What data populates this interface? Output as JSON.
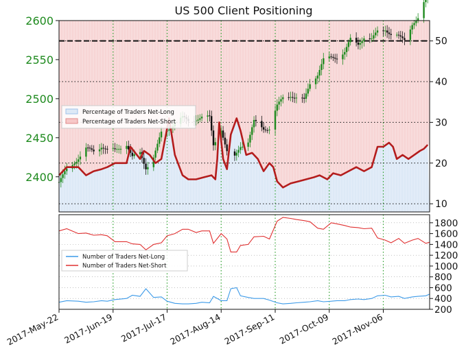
{
  "chart_data": {
    "type": "line",
    "title": "US 500 Client Positioning",
    "colors": {
      "price_axis": "#1e8a1e",
      "candle_up": "#1e8a1e",
      "candle_down": "#111111",
      "net_short_line": "#b41c1c",
      "net_short_fill": "#f7d5d5",
      "net_long_fill": "#dde9f6",
      "short_count_line": "#e03030",
      "long_count_line": "#3c9ae8",
      "grid": "#2ca02c"
    },
    "x_tick_labels": [
      "2017-May-22",
      "2017-Jun-19",
      "2017-Jul-17",
      "2017-Aug-14",
      "2017-Sep-11",
      "2017-Oct-09",
      "2017-Nov-06"
    ],
    "top_panel": {
      "price_axis": {
        "ticks": [
          2400,
          2450,
          2500,
          2550,
          2600
        ],
        "range": [
          2355,
          2600
        ]
      },
      "percent_axis": {
        "ticks": [
          10,
          20,
          30,
          40,
          50
        ],
        "range": [
          8,
          55
        ]
      },
      "reference_line": 50,
      "legend": [
        "Percentage of Traders Net-Long",
        "Percentage of Traders Net-Short"
      ],
      "net_short_pct": [
        {
          "x": "2017-05-22",
          "y": 17
        },
        {
          "x": "2017-05-26",
          "y": 19
        },
        {
          "x": "2017-06-01",
          "y": 19
        },
        {
          "x": "2017-06-05",
          "y": 17
        },
        {
          "x": "2017-06-09",
          "y": 18
        },
        {
          "x": "2017-06-13",
          "y": 18.5
        },
        {
          "x": "2017-06-16",
          "y": 19
        },
        {
          "x": "2017-06-20",
          "y": 20
        },
        {
          "x": "2017-06-26",
          "y": 20
        },
        {
          "x": "2017-06-28",
          "y": 24
        },
        {
          "x": "2017-07-03",
          "y": 21
        },
        {
          "x": "2017-07-05",
          "y": 23
        },
        {
          "x": "2017-07-08",
          "y": 22
        },
        {
          "x": "2017-07-11",
          "y": 20
        },
        {
          "x": "2017-07-14",
          "y": 21
        },
        {
          "x": "2017-07-18",
          "y": 31
        },
        {
          "x": "2017-07-21",
          "y": 22
        },
        {
          "x": "2017-07-25",
          "y": 17
        },
        {
          "x": "2017-07-28",
          "y": 16
        },
        {
          "x": "2017-08-01",
          "y": 16
        },
        {
          "x": "2017-08-05",
          "y": 16.5
        },
        {
          "x": "2017-08-09",
          "y": 17
        },
        {
          "x": "2017-08-11",
          "y": 16
        },
        {
          "x": "2017-08-12",
          "y": 21
        },
        {
          "x": "2017-08-13",
          "y": 30
        },
        {
          "x": "2017-08-15",
          "y": 21
        },
        {
          "x": "2017-08-17",
          "y": 18.5
        },
        {
          "x": "2017-08-19",
          "y": 27
        },
        {
          "x": "2017-08-22",
          "y": 31
        },
        {
          "x": "2017-08-24",
          "y": 28
        },
        {
          "x": "2017-08-27",
          "y": 22
        },
        {
          "x": "2017-08-30",
          "y": 22.5
        },
        {
          "x": "2017-09-02",
          "y": 21
        },
        {
          "x": "2017-09-05",
          "y": 18
        },
        {
          "x": "2017-09-08",
          "y": 20
        },
        {
          "x": "2017-09-10",
          "y": 19
        },
        {
          "x": "2017-09-12",
          "y": 15.5
        },
        {
          "x": "2017-09-15",
          "y": 14
        },
        {
          "x": "2017-09-19",
          "y": 15
        },
        {
          "x": "2017-09-23",
          "y": 15.5
        },
        {
          "x": "2017-09-27",
          "y": 16
        },
        {
          "x": "2017-10-01",
          "y": 16.5
        },
        {
          "x": "2017-10-04",
          "y": 17
        },
        {
          "x": "2017-10-08",
          "y": 16
        },
        {
          "x": "2017-10-11",
          "y": 17.5
        },
        {
          "x": "2017-10-15",
          "y": 17
        },
        {
          "x": "2017-10-19",
          "y": 18
        },
        {
          "x": "2017-10-23",
          "y": 19
        },
        {
          "x": "2017-10-27",
          "y": 18
        },
        {
          "x": "2017-10-31",
          "y": 19
        },
        {
          "x": "2017-11-03",
          "y": 24
        },
        {
          "x": "2017-11-06",
          "y": 24
        },
        {
          "x": "2017-11-09",
          "y": 25
        },
        {
          "x": "2017-11-11",
          "y": 24
        },
        {
          "x": "2017-11-13",
          "y": 21
        },
        {
          "x": "2017-11-16",
          "y": 22
        },
        {
          "x": "2017-11-19",
          "y": 21
        },
        {
          "x": "2017-11-22",
          "y": 22
        },
        {
          "x": "2017-11-25",
          "y": 23
        },
        {
          "x": "2017-11-27",
          "y": 23.5
        },
        {
          "x": "2017-11-29",
          "y": 24.5
        }
      ],
      "price_close": [
        {
          "x": "2017-05-22",
          "y": 2393
        },
        {
          "x": "2017-05-26",
          "y": 2408
        },
        {
          "x": "2017-06-01",
          "y": 2425
        },
        {
          "x": "2017-06-05",
          "y": 2435
        },
        {
          "x": "2017-06-09",
          "y": 2432
        },
        {
          "x": "2017-06-13",
          "y": 2440
        },
        {
          "x": "2017-06-16",
          "y": 2435
        },
        {
          "x": "2017-06-20",
          "y": 2433
        },
        {
          "x": "2017-06-26",
          "y": 2442
        },
        {
          "x": "2017-06-29",
          "y": 2425
        },
        {
          "x": "2017-07-03",
          "y": 2430
        },
        {
          "x": "2017-07-06",
          "y": 2412
        },
        {
          "x": "2017-07-10",
          "y": 2425
        },
        {
          "x": "2017-07-14",
          "y": 2455
        },
        {
          "x": "2017-07-17",
          "y": 2460
        },
        {
          "x": "2017-07-21",
          "y": 2470
        },
        {
          "x": "2017-07-25",
          "y": 2475
        },
        {
          "x": "2017-07-28",
          "y": 2470
        },
        {
          "x": "2017-08-01",
          "y": 2475
        },
        {
          "x": "2017-08-04",
          "y": 2477
        },
        {
          "x": "2017-08-08",
          "y": 2475
        },
        {
          "x": "2017-08-10",
          "y": 2440
        },
        {
          "x": "2017-08-14",
          "y": 2462
        },
        {
          "x": "2017-08-17",
          "y": 2432
        },
        {
          "x": "2017-08-21",
          "y": 2425
        },
        {
          "x": "2017-08-24",
          "y": 2440
        },
        {
          "x": "2017-08-28",
          "y": 2445
        },
        {
          "x": "2017-08-31",
          "y": 2470
        },
        {
          "x": "2017-09-05",
          "y": 2462
        },
        {
          "x": "2017-09-08",
          "y": 2463
        },
        {
          "x": "2017-09-12",
          "y": 2490
        },
        {
          "x": "2017-09-15",
          "y": 2500
        },
        {
          "x": "2017-09-19",
          "y": 2505
        },
        {
          "x": "2017-09-22",
          "y": 2502
        },
        {
          "x": "2017-09-26",
          "y": 2497
        },
        {
          "x": "2017-09-29",
          "y": 2519
        },
        {
          "x": "2017-10-03",
          "y": 2532
        },
        {
          "x": "2017-10-06",
          "y": 2550
        },
        {
          "x": "2017-10-10",
          "y": 2552
        },
        {
          "x": "2017-10-13",
          "y": 2553
        },
        {
          "x": "2017-10-17",
          "y": 2560
        },
        {
          "x": "2017-10-20",
          "y": 2575
        },
        {
          "x": "2017-10-24",
          "y": 2570
        },
        {
          "x": "2017-10-27",
          "y": 2580
        },
        {
          "x": "2017-10-31",
          "y": 2575
        },
        {
          "x": "2017-11-03",
          "y": 2585
        },
        {
          "x": "2017-11-07",
          "y": 2590
        },
        {
          "x": "2017-11-10",
          "y": 2583
        },
        {
          "x": "2017-11-14",
          "y": 2578
        },
        {
          "x": "2017-11-17",
          "y": 2575
        },
        {
          "x": "2017-11-21",
          "y": 2597
        },
        {
          "x": "2017-11-24",
          "y": 2602
        },
        {
          "x": "2017-11-28",
          "y": 2627
        },
        {
          "x": "2017-11-30",
          "y": 2645
        }
      ]
    },
    "bottom_panel": {
      "axis": {
        "ticks": [
          200,
          400,
          600,
          800,
          1000,
          1200,
          1400,
          1600,
          1800
        ],
        "range": [
          200,
          1950
        ]
      },
      "legend": [
        "Number of Traders Net-Long",
        "Number of Traders Net-Short"
      ],
      "net_short_count": [
        {
          "x": "2017-05-22",
          "y": 1650
        },
        {
          "x": "2017-05-26",
          "y": 1690
        },
        {
          "x": "2017-06-01",
          "y": 1600
        },
        {
          "x": "2017-06-05",
          "y": 1610
        },
        {
          "x": "2017-06-09",
          "y": 1570
        },
        {
          "x": "2017-06-13",
          "y": 1580
        },
        {
          "x": "2017-06-16",
          "y": 1560
        },
        {
          "x": "2017-06-20",
          "y": 1450
        },
        {
          "x": "2017-06-26",
          "y": 1450
        },
        {
          "x": "2017-06-29",
          "y": 1410
        },
        {
          "x": "2017-07-03",
          "y": 1400
        },
        {
          "x": "2017-07-06",
          "y": 1300
        },
        {
          "x": "2017-07-10",
          "y": 1400
        },
        {
          "x": "2017-07-14",
          "y": 1430
        },
        {
          "x": "2017-07-17",
          "y": 1560
        },
        {
          "x": "2017-07-21",
          "y": 1600
        },
        {
          "x": "2017-07-25",
          "y": 1680
        },
        {
          "x": "2017-07-28",
          "y": 1680
        },
        {
          "x": "2017-08-01",
          "y": 1620
        },
        {
          "x": "2017-08-04",
          "y": 1650
        },
        {
          "x": "2017-08-08",
          "y": 1650
        },
        {
          "x": "2017-08-10",
          "y": 1420
        },
        {
          "x": "2017-08-14",
          "y": 1600
        },
        {
          "x": "2017-08-17",
          "y": 1500
        },
        {
          "x": "2017-08-19",
          "y": 1260
        },
        {
          "x": "2017-08-22",
          "y": 1260
        },
        {
          "x": "2017-08-24",
          "y": 1380
        },
        {
          "x": "2017-08-28",
          "y": 1400
        },
        {
          "x": "2017-08-31",
          "y": 1540
        },
        {
          "x": "2017-09-05",
          "y": 1550
        },
        {
          "x": "2017-09-08",
          "y": 1500
        },
        {
          "x": "2017-09-12",
          "y": 1830
        },
        {
          "x": "2017-09-15",
          "y": 1900
        },
        {
          "x": "2017-09-19",
          "y": 1880
        },
        {
          "x": "2017-09-22",
          "y": 1860
        },
        {
          "x": "2017-09-26",
          "y": 1840
        },
        {
          "x": "2017-09-29",
          "y": 1820
        },
        {
          "x": "2017-10-03",
          "y": 1700
        },
        {
          "x": "2017-10-06",
          "y": 1680
        },
        {
          "x": "2017-10-10",
          "y": 1800
        },
        {
          "x": "2017-10-13",
          "y": 1780
        },
        {
          "x": "2017-10-17",
          "y": 1750
        },
        {
          "x": "2017-10-20",
          "y": 1720
        },
        {
          "x": "2017-10-24",
          "y": 1710
        },
        {
          "x": "2017-10-27",
          "y": 1690
        },
        {
          "x": "2017-10-31",
          "y": 1700
        },
        {
          "x": "2017-11-03",
          "y": 1520
        },
        {
          "x": "2017-11-07",
          "y": 1480
        },
        {
          "x": "2017-11-10",
          "y": 1430
        },
        {
          "x": "2017-11-14",
          "y": 1510
        },
        {
          "x": "2017-11-17",
          "y": 1420
        },
        {
          "x": "2017-11-21",
          "y": 1480
        },
        {
          "x": "2017-11-24",
          "y": 1510
        },
        {
          "x": "2017-11-28",
          "y": 1420
        },
        {
          "x": "2017-11-30",
          "y": 1440
        }
      ],
      "net_long_count": [
        {
          "x": "2017-05-22",
          "y": 330
        },
        {
          "x": "2017-05-26",
          "y": 360
        },
        {
          "x": "2017-06-01",
          "y": 350
        },
        {
          "x": "2017-06-05",
          "y": 330
        },
        {
          "x": "2017-06-09",
          "y": 340
        },
        {
          "x": "2017-06-13",
          "y": 360
        },
        {
          "x": "2017-06-16",
          "y": 350
        },
        {
          "x": "2017-06-20",
          "y": 380
        },
        {
          "x": "2017-06-26",
          "y": 400
        },
        {
          "x": "2017-06-29",
          "y": 460
        },
        {
          "x": "2017-07-03",
          "y": 440
        },
        {
          "x": "2017-07-06",
          "y": 580
        },
        {
          "x": "2017-07-10",
          "y": 420
        },
        {
          "x": "2017-07-14",
          "y": 430
        },
        {
          "x": "2017-07-17",
          "y": 350
        },
        {
          "x": "2017-07-21",
          "y": 310
        },
        {
          "x": "2017-07-25",
          "y": 300
        },
        {
          "x": "2017-07-28",
          "y": 300
        },
        {
          "x": "2017-08-01",
          "y": 310
        },
        {
          "x": "2017-08-04",
          "y": 330
        },
        {
          "x": "2017-08-08",
          "y": 320
        },
        {
          "x": "2017-08-10",
          "y": 440
        },
        {
          "x": "2017-08-14",
          "y": 360
        },
        {
          "x": "2017-08-17",
          "y": 360
        },
        {
          "x": "2017-08-19",
          "y": 580
        },
        {
          "x": "2017-08-22",
          "y": 600
        },
        {
          "x": "2017-08-24",
          "y": 450
        },
        {
          "x": "2017-08-28",
          "y": 420
        },
        {
          "x": "2017-08-31",
          "y": 400
        },
        {
          "x": "2017-09-05",
          "y": 400
        },
        {
          "x": "2017-09-08",
          "y": 370
        },
        {
          "x": "2017-09-12",
          "y": 320
        },
        {
          "x": "2017-09-15",
          "y": 300
        },
        {
          "x": "2017-09-19",
          "y": 310
        },
        {
          "x": "2017-09-22",
          "y": 320
        },
        {
          "x": "2017-09-26",
          "y": 330
        },
        {
          "x": "2017-09-29",
          "y": 340
        },
        {
          "x": "2017-10-03",
          "y": 360
        },
        {
          "x": "2017-10-06",
          "y": 340
        },
        {
          "x": "2017-10-10",
          "y": 350
        },
        {
          "x": "2017-10-13",
          "y": 360
        },
        {
          "x": "2017-10-17",
          "y": 360
        },
        {
          "x": "2017-10-20",
          "y": 380
        },
        {
          "x": "2017-10-24",
          "y": 390
        },
        {
          "x": "2017-10-27",
          "y": 380
        },
        {
          "x": "2017-10-31",
          "y": 400
        },
        {
          "x": "2017-11-03",
          "y": 450
        },
        {
          "x": "2017-11-07",
          "y": 460
        },
        {
          "x": "2017-11-10",
          "y": 430
        },
        {
          "x": "2017-11-14",
          "y": 440
        },
        {
          "x": "2017-11-17",
          "y": 400
        },
        {
          "x": "2017-11-21",
          "y": 430
        },
        {
          "x": "2017-11-24",
          "y": 440
        },
        {
          "x": "2017-11-28",
          "y": 450
        },
        {
          "x": "2017-11-30",
          "y": 480
        }
      ]
    }
  }
}
